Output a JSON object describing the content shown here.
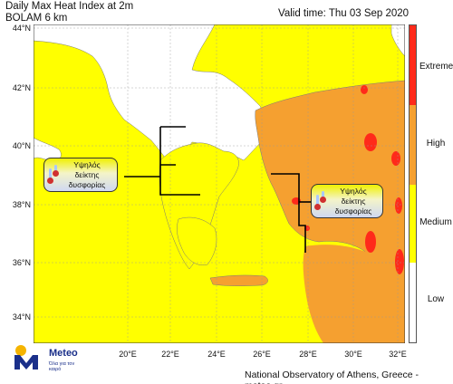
{
  "title": {
    "line1": "Daily Max Heat Index at 2m",
    "line2": "BOLAM 6 km"
  },
  "valid_time": "Valid time: Thu 03 Sep 2020",
  "axes": {
    "lat_labels": [
      "44°N",
      "42°N",
      "40°N",
      "38°N",
      "36°N",
      "34°N"
    ],
    "lon_labels": [
      "20°E",
      "22°E",
      "24°E",
      "26°E",
      "28°E",
      "30°E",
      "32°E"
    ]
  },
  "legend": {
    "levels": [
      {
        "label": "Extreme",
        "color": "#ff2a1a"
      },
      {
        "label": "High",
        "color": "#f5a030"
      },
      {
        "label": "Medium",
        "color": "#ffff00"
      },
      {
        "label": "Low",
        "color": "#ffffff"
      }
    ]
  },
  "colors": {
    "sea_medium": "#ffff00",
    "land_high": "#f5a030",
    "extreme": "#ff2a1a",
    "land_low": "#ffffff"
  },
  "callouts": [
    {
      "lines": [
        "Υψηλός",
        "δείκτης",
        "δυσφορίας"
      ],
      "icon": "thermometer-icon"
    },
    {
      "lines": [
        "Υψηλός",
        "δείκτης",
        "δυσφορίας"
      ],
      "icon": "thermometer-icon"
    }
  ],
  "logo": {
    "name": "Meteo",
    "tagline": "Όλα για τον καιρό",
    "icon": "meteo-logo-icon"
  },
  "footer": "National Observatory of Athens, Greece - meteo.gr"
}
